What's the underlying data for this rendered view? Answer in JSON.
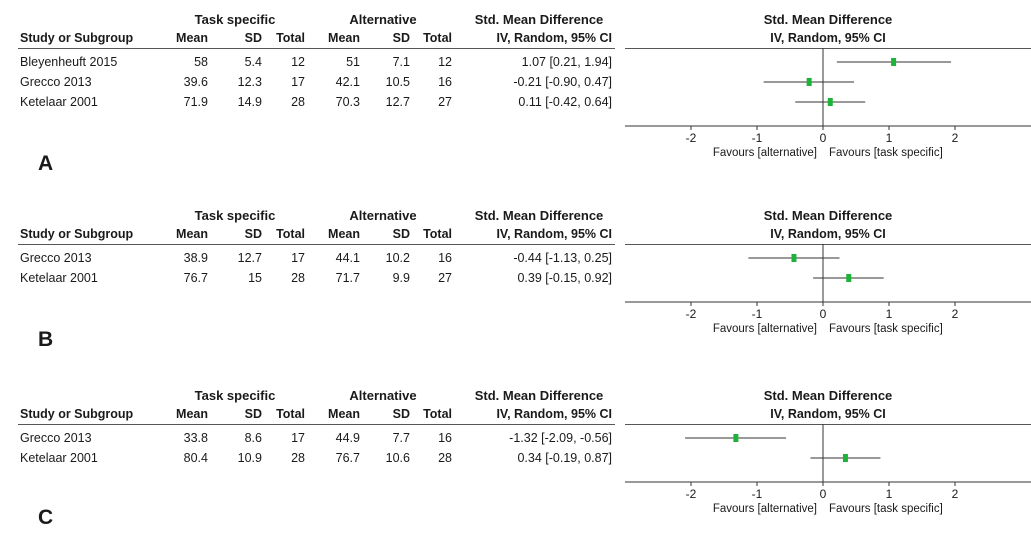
{
  "columns": {
    "group_task": "Task specific",
    "group_alt": "Alternative",
    "smd": "Std. Mean Difference",
    "method": "IV, Random, 95% CI",
    "study": "Study or Subgroup",
    "mean": "Mean",
    "sd": "SD",
    "total": "Total"
  },
  "forest_header": {
    "title": "Std. Mean Difference",
    "method": "IV, Random, 95% CI"
  },
  "axis": {
    "favours_left": "Favours [alternative]",
    "favours_right": "Favours [task specific]"
  },
  "chart_data": [
    {
      "type": "forest",
      "panel": "A",
      "xlim": [
        -2,
        2
      ],
      "ticks": [
        "-2",
        "-1",
        "0",
        "1",
        "2"
      ],
      "studies": [
        {
          "name": "Bleyenheuft 2015",
          "task_mean": "58",
          "task_sd": "5.4",
          "task_total": "12",
          "alt_mean": "51",
          "alt_sd": "7.1",
          "alt_total": "12",
          "ci_text": "1.07 [0.21, 1.94]",
          "est": 1.07,
          "lo": 0.21,
          "hi": 1.94
        },
        {
          "name": "Grecco 2013",
          "task_mean": "39.6",
          "task_sd": "12.3",
          "task_total": "17",
          "alt_mean": "42.1",
          "alt_sd": "10.5",
          "alt_total": "16",
          "ci_text": "-0.21 [-0.90, 0.47]",
          "est": -0.21,
          "lo": -0.9,
          "hi": 0.47
        },
        {
          "name": "Ketelaar 2001",
          "task_mean": "71.9",
          "task_sd": "14.9",
          "task_total": "28",
          "alt_mean": "70.3",
          "alt_sd": "12.7",
          "alt_total": "27",
          "ci_text": "0.11 [-0.42, 0.64]",
          "est": 0.11,
          "lo": -0.42,
          "hi": 0.64
        }
      ]
    },
    {
      "type": "forest",
      "panel": "B",
      "xlim": [
        -2,
        2
      ],
      "ticks": [
        "-2",
        "-1",
        "0",
        "1",
        "2"
      ],
      "studies": [
        {
          "name": "Grecco 2013",
          "task_mean": "38.9",
          "task_sd": "12.7",
          "task_total": "17",
          "alt_mean": "44.1",
          "alt_sd": "10.2",
          "alt_total": "16",
          "ci_text": "-0.44 [-1.13, 0.25]",
          "est": -0.44,
          "lo": -1.13,
          "hi": 0.25
        },
        {
          "name": "Ketelaar 2001",
          "task_mean": "76.7",
          "task_sd": "15",
          "task_total": "28",
          "alt_mean": "71.7",
          "alt_sd": "9.9",
          "alt_total": "27",
          "ci_text": "0.39 [-0.15, 0.92]",
          "est": 0.39,
          "lo": -0.15,
          "hi": 0.92
        }
      ]
    },
    {
      "type": "forest",
      "panel": "C",
      "xlim": [
        -2,
        2
      ],
      "ticks": [
        "-2",
        "-1",
        "0",
        "1",
        "2"
      ],
      "studies": [
        {
          "name": "Grecco 2013",
          "task_mean": "33.8",
          "task_sd": "8.6",
          "task_total": "17",
          "alt_mean": "44.9",
          "alt_sd": "7.7",
          "alt_total": "16",
          "ci_text": "-1.32 [-2.09, -0.56]",
          "est": -1.32,
          "lo": -2.09,
          "hi": -0.56
        },
        {
          "name": "Ketelaar 2001",
          "task_mean": "80.4",
          "task_sd": "10.9",
          "task_total": "28",
          "alt_mean": "76.7",
          "alt_sd": "10.6",
          "alt_total": "28",
          "ci_text": "0.34 [-0.19, 0.87]",
          "est": 0.34,
          "lo": -0.19,
          "hi": 0.87
        }
      ]
    }
  ],
  "colors": {
    "marker": "#1db33a",
    "line": "#333333"
  }
}
